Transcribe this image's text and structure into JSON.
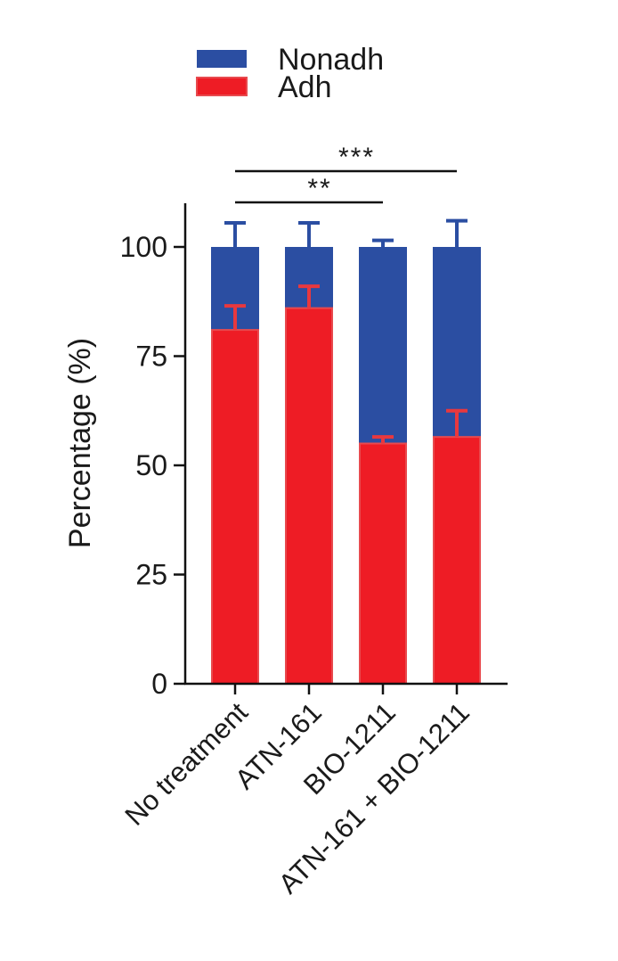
{
  "chart_data": {
    "type": "bar",
    "stacked": true,
    "categories": [
      "No treatment",
      "ATN-161",
      "BIO-1211",
      "ATN-161 + BIO-1211"
    ],
    "series": [
      {
        "name": "Adh",
        "color": "#ee1c25",
        "values": [
          81,
          86,
          55,
          56.5
        ],
        "errors": [
          5.5,
          5,
          1.5,
          6
        ]
      },
      {
        "name": "Nonadh",
        "color": "#2b4ea2",
        "values": [
          19,
          14,
          45,
          43.5
        ],
        "errors": [
          5.5,
          5.5,
          1.5,
          6
        ]
      }
    ],
    "xlabel": "",
    "ylabel": "Percentage (%)",
    "ylim": [
      0,
      110
    ],
    "yticks": [
      0,
      25,
      50,
      75,
      100
    ],
    "legend": {
      "position": "top-left",
      "order": [
        "Nonadh",
        "Adh"
      ]
    },
    "grid": false,
    "significance": [
      {
        "from": "No treatment",
        "to": "BIO-1211",
        "label": "**"
      },
      {
        "from": "No treatment",
        "to": "ATN-161 + BIO-1211",
        "label": "***"
      }
    ]
  }
}
